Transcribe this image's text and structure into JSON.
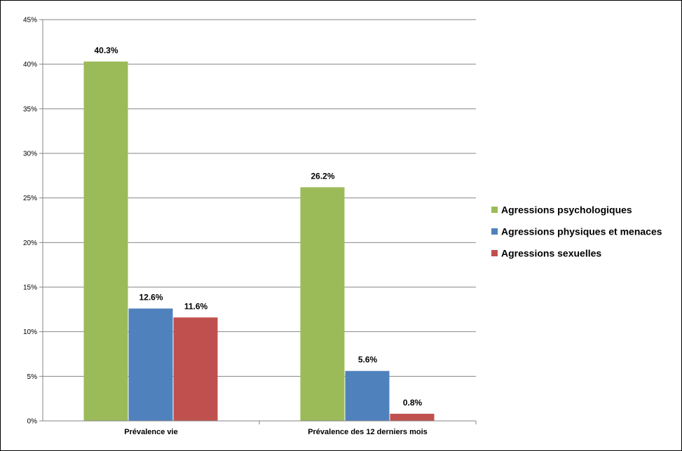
{
  "chart_data": {
    "type": "bar",
    "title": "",
    "xlabel": "",
    "ylabel": "",
    "categories": [
      "Prévalence vie",
      "Prévalence des 12 derniers mois"
    ],
    "series": [
      {
        "name": "Agressions psychologiques",
        "values": [
          40.3,
          26.2
        ],
        "labels": [
          "40.3%",
          "26.2%"
        ],
        "color": "#9BBB59"
      },
      {
        "name": "Agressions physiques et menaces",
        "values": [
          12.6,
          5.6
        ],
        "labels": [
          "12.6%",
          "5.6%"
        ],
        "color": "#4F81BD"
      },
      {
        "name": "Agressions sexuelles",
        "values": [
          11.6,
          0.8
        ],
        "labels": [
          "11.6%",
          "0.8%"
        ],
        "color": "#C0504D"
      }
    ],
    "ylim": [
      0,
      45
    ],
    "yticks": [
      0,
      5,
      10,
      15,
      20,
      25,
      30,
      35,
      40,
      45
    ],
    "ytick_labels": [
      "0%",
      "5%",
      "10%",
      "15%",
      "20%",
      "25%",
      "30%",
      "35%",
      "40%",
      "45%"
    ],
    "grid": true,
    "legend_position": "right"
  }
}
